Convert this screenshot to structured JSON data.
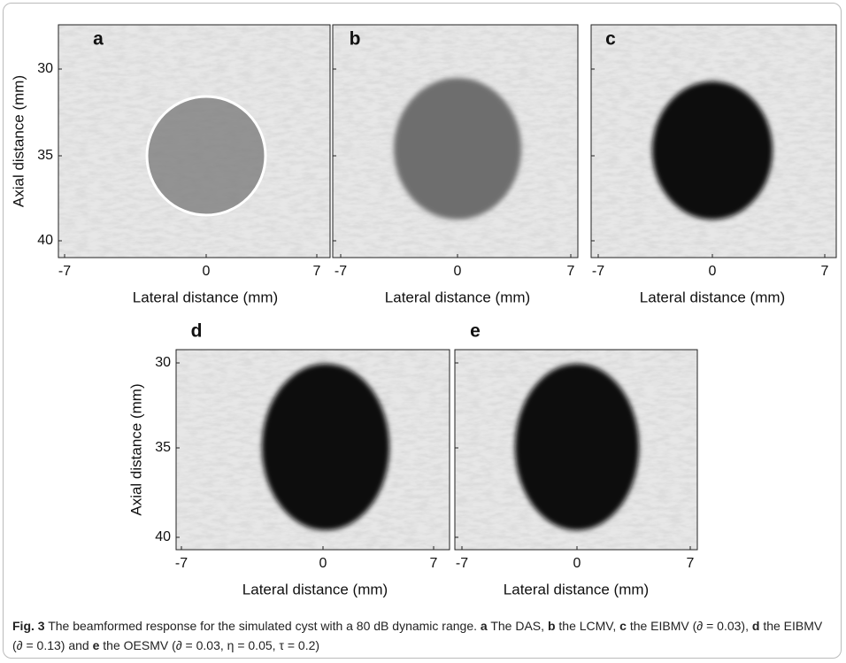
{
  "panels": [
    {
      "label": "a",
      "xticks": [
        -7,
        0,
        7
      ],
      "yticks": [
        30,
        35,
        40
      ],
      "x_label": "Lateral distance (mm)",
      "y_label": "Axial distance (mm)"
    },
    {
      "label": "b",
      "xticks": [
        -7,
        0,
        7
      ],
      "x_label": "Lateral distance (mm)"
    },
    {
      "label": "c",
      "xticks": [
        -7,
        0,
        7
      ],
      "x_label": "Lateral distance (mm)"
    },
    {
      "label": "d",
      "xticks": [
        -7,
        0,
        7
      ],
      "yticks": [
        30,
        35,
        40
      ],
      "x_label": "Lateral distance (mm)",
      "y_label": "Axial distance (mm)"
    },
    {
      "label": "e",
      "xticks": [
        -7,
        0,
        7
      ],
      "x_label": "Lateral distance (mm)"
    }
  ],
  "caption": {
    "label": "Fig. 3",
    "text": "The beamformed response for the simulated cyst with a 80 dB dynamic range.",
    "parts": [
      {
        "key": "a",
        "text": "The DAS,"
      },
      {
        "key": "b",
        "text": "the LCMV,"
      },
      {
        "key": "c",
        "text": "the EIBMV (∂ = 0.03),"
      },
      {
        "key": "d",
        "text": "the EIBMV (∂ = 0.13) and"
      },
      {
        "key": "e",
        "text": "the OESMV (∂ = 0.03, η = 0.05, τ = 0.2)"
      }
    ]
  }
}
